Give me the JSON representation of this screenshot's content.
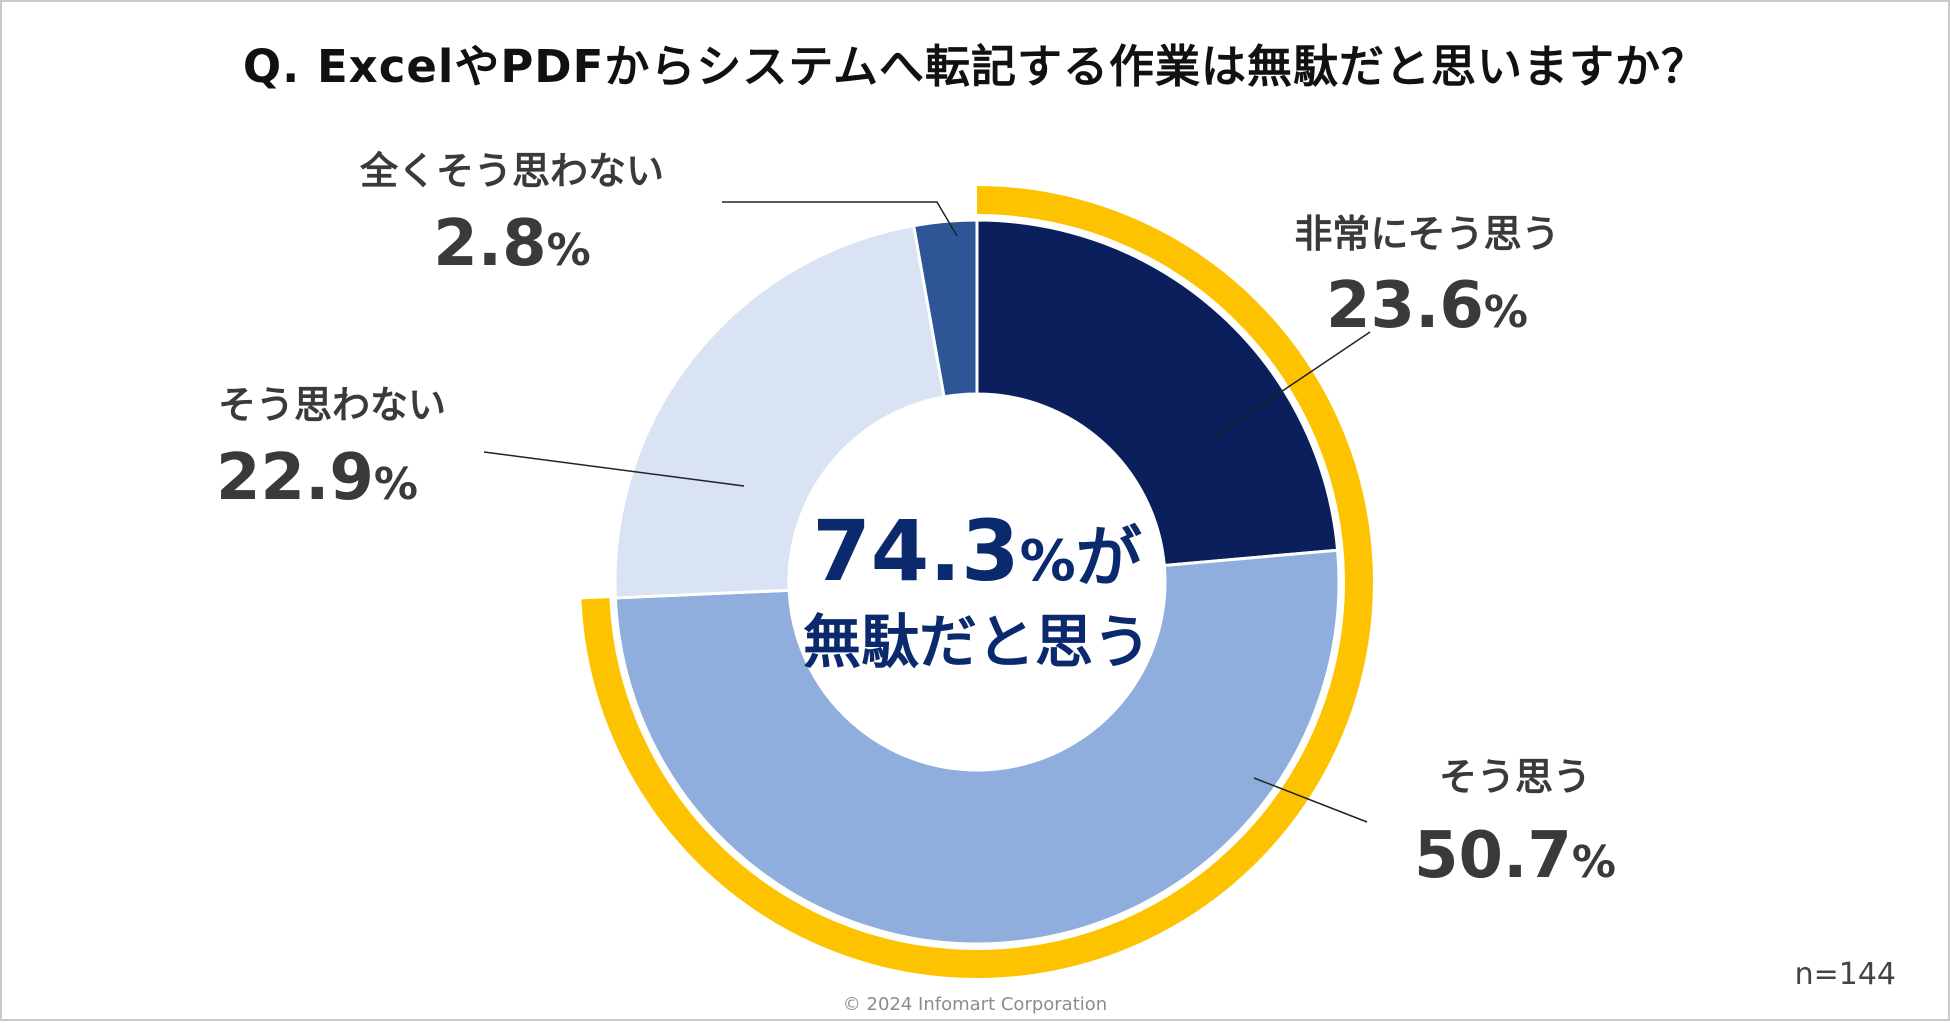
{
  "header": {
    "title": "Q. ExcelやPDFからシステムへ転記する作業は無駄だと思いますか？"
  },
  "chart_data": {
    "type": "pie",
    "variant": "donut",
    "title": "Q. ExcelやPDFからシステムへ転記する作業は無駄だと思いますか？",
    "start": "12 o'clock, clockwise",
    "slices": [
      {
        "label": "非常にそう思う",
        "value": 23.6,
        "value_label": "23.6%",
        "color": "#0b1f5c",
        "label_side": "right"
      },
      {
        "label": "そう思う",
        "value": 50.7,
        "value_label": "50.7%",
        "color": "#90aedd",
        "label_side": "right"
      },
      {
        "label": "そう思わない",
        "value": 22.9,
        "value_label": "22.9%",
        "color": "#dae3f3",
        "label_side": "left"
      },
      {
        "label": "全くそう思わない",
        "value": 2.8,
        "value_label": "2.8%",
        "color": "#2e5596",
        "label_side": "left"
      }
    ],
    "highlight": {
      "covers": [
        "非常にそう思う",
        "そう思う"
      ],
      "value": 74.3,
      "color": "#fdc300"
    },
    "center_text": {
      "value": "74.3",
      "unit": "%",
      "suffix": "が",
      "line2": "無駄だと思う",
      "color": "#0b2a6e"
    }
  },
  "footer": {
    "sample_size": "n=144",
    "copyright": "© 2024 Infomart Corporation"
  }
}
